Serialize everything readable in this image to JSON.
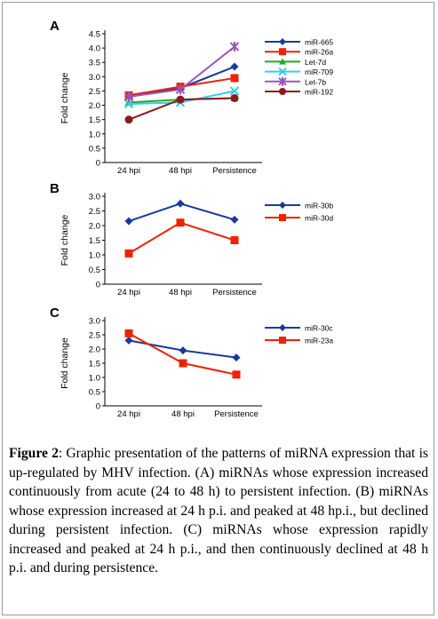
{
  "caption": {
    "label": "Figure 2",
    "text": ": Graphic presentation of the patterns of miRNA expression that is up-regulated by MHV infection. (A) miRNAs whose expression increased continuously from acute (24 to 48 h) to persistent infection. (B) miRNAs whose expression increased at 24 h p.i. and peaked at 48 hp.i., but declined during persistent infection. (C) miRNAs whose expression rapidly increased and peaked at 24 h p.i., and then continuously declined at 48 h p.i. and during persistence."
  },
  "chart_data": [
    {
      "panel": "A",
      "type": "line",
      "ylabel": "Fold change",
      "categories": [
        "24 hpi",
        "48 hpi",
        "Persistence"
      ],
      "ylim": [
        0,
        4.5
      ],
      "yticks": [
        "0",
        "0.5",
        "1.0",
        "1.5",
        "2.0",
        "2.5",
        "3.0",
        "3.5",
        "4.0",
        "4.5"
      ],
      "legend_position": "right",
      "series": [
        {
          "name": "miR-665",
          "values": [
            2.3,
            2.6,
            3.35
          ],
          "color": "#1a3a9c",
          "marker": "diamond"
        },
        {
          "name": "miR-26a",
          "values": [
            2.35,
            2.65,
            2.95
          ],
          "color": "#ee2200",
          "marker": "square"
        },
        {
          "name": "Let-7d",
          "values": [
            2.1,
            2.2,
            2.25
          ],
          "color": "#22aa22",
          "marker": "triangle"
        },
        {
          "name": "miR-709",
          "values": [
            2.05,
            2.1,
            2.5
          ],
          "color": "#33ccee",
          "marker": "x"
        },
        {
          "name": "Let-7b",
          "values": [
            2.3,
            2.55,
            4.05
          ],
          "color": "#9955bb",
          "marker": "star"
        },
        {
          "name": "miR-192",
          "values": [
            1.5,
            2.2,
            2.25
          ],
          "color": "#8b1a1a",
          "marker": "circle"
        }
      ]
    },
    {
      "panel": "B",
      "type": "line",
      "ylabel": "Fold change",
      "categories": [
        "24 hpi",
        "48 hpi",
        "Persistence"
      ],
      "ylim": [
        0,
        3.0
      ],
      "yticks": [
        "0",
        "0.5",
        "1.0",
        "1.5",
        "2.0",
        "2.5",
        "3.0"
      ],
      "legend_position": "right",
      "series": [
        {
          "name": "miR-30b",
          "values": [
            2.15,
            2.75,
            2.2
          ],
          "color": "#1a3a9c",
          "marker": "diamond"
        },
        {
          "name": "miR-30d",
          "values": [
            1.05,
            2.1,
            1.5
          ],
          "color": "#ee2200",
          "marker": "square"
        }
      ]
    },
    {
      "panel": "C",
      "type": "line",
      "ylabel": "Fold change",
      "categories": [
        "24 hpi",
        "48 hpi",
        "Persistence"
      ],
      "ylim": [
        0,
        3.0
      ],
      "yticks": [
        "0",
        "0.5",
        "1.0",
        "1.5",
        "2.0",
        "2.5",
        "3.0"
      ],
      "legend_position": "right",
      "series": [
        {
          "name": "miR-30c",
          "values": [
            2.3,
            1.95,
            1.7
          ],
          "color": "#1a3a9c",
          "marker": "diamond"
        },
        {
          "name": "miR-23a",
          "values": [
            2.55,
            1.5,
            1.1
          ],
          "color": "#ee2200",
          "marker": "square"
        }
      ]
    }
  ]
}
